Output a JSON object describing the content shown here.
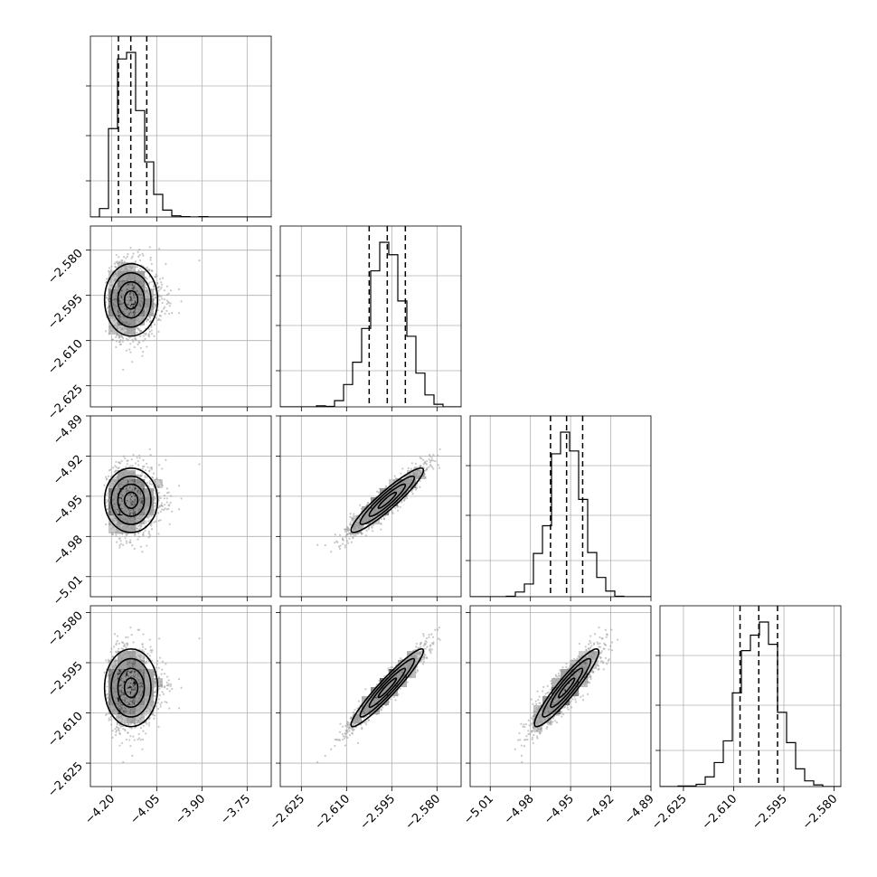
{
  "chart_data": {
    "type": "corner",
    "grid": true,
    "colors": {
      "line": "#000000",
      "grid": "#b0b0b0",
      "points": "#9a9a9a"
    },
    "parameters": [
      {
        "index": 0,
        "range": [
          -4.27,
          -3.67
        ],
        "ticks": [
          -4.2,
          -4.05,
          -3.9,
          -3.75
        ],
        "tick_labels": [
          "−4.20",
          "−4.05",
          "−3.90",
          "−3.75"
        ],
        "mean": -4.135,
        "sigma": 0.044,
        "skew": 1.4,
        "quantiles": [
          -4.177,
          -4.136,
          -4.083
        ]
      },
      {
        "index": 1,
        "range": [
          -2.632,
          -2.572
        ],
        "ticks": [
          -2.625,
          -2.61,
          -2.595,
          -2.58
        ],
        "tick_labels": [
          "−2.625",
          "−2.610",
          "−2.595",
          "−2.580"
        ],
        "mean": -2.5965,
        "sigma": 0.006,
        "skew": 0,
        "quantiles": [
          -2.6025,
          -2.5965,
          -2.5905
        ]
      },
      {
        "index": 2,
        "range": [
          -5.025,
          -4.89
        ],
        "ticks": [
          -5.01,
          -4.98,
          -4.95,
          -4.92,
          -4.89
        ],
        "tick_labels": [
          "−5.01",
          "−4.98",
          "−4.95",
          "−4.92",
          "−4.89"
        ],
        "mean": -4.953,
        "sigma": 0.012,
        "skew": 0,
        "quantiles": [
          -4.965,
          -4.953,
          -4.941
        ]
      },
      {
        "index": 3,
        "range": [
          -2.632,
          -2.578
        ],
        "ticks": [
          -2.625,
          -2.61,
          -2.595,
          -2.58
        ],
        "tick_labels": [
          "−2.625",
          "−2.610",
          "−2.595",
          "−2.580"
        ],
        "mean": -2.6025,
        "sigma": 0.0058,
        "skew": 0,
        "quantiles": [
          -2.6081,
          -2.6025,
          -2.5969
        ]
      }
    ],
    "correlations": [
      {
        "pair": [
          0,
          1
        ],
        "rho": 0.0
      },
      {
        "pair": [
          0,
          2
        ],
        "rho": 0.0
      },
      {
        "pair": [
          1,
          2
        ],
        "rho": 0.93
      },
      {
        "pair": [
          0,
          3
        ],
        "rho": 0.0
      },
      {
        "pair": [
          1,
          3
        ],
        "rho": 0.95
      },
      {
        "pair": [
          2,
          3
        ],
        "rho": 0.93
      }
    ],
    "contour_levels_sigma": [
      0.5,
      1.0,
      1.5,
      2.0
    ],
    "hist_bins": 20,
    "samples_shown": 1600
  }
}
